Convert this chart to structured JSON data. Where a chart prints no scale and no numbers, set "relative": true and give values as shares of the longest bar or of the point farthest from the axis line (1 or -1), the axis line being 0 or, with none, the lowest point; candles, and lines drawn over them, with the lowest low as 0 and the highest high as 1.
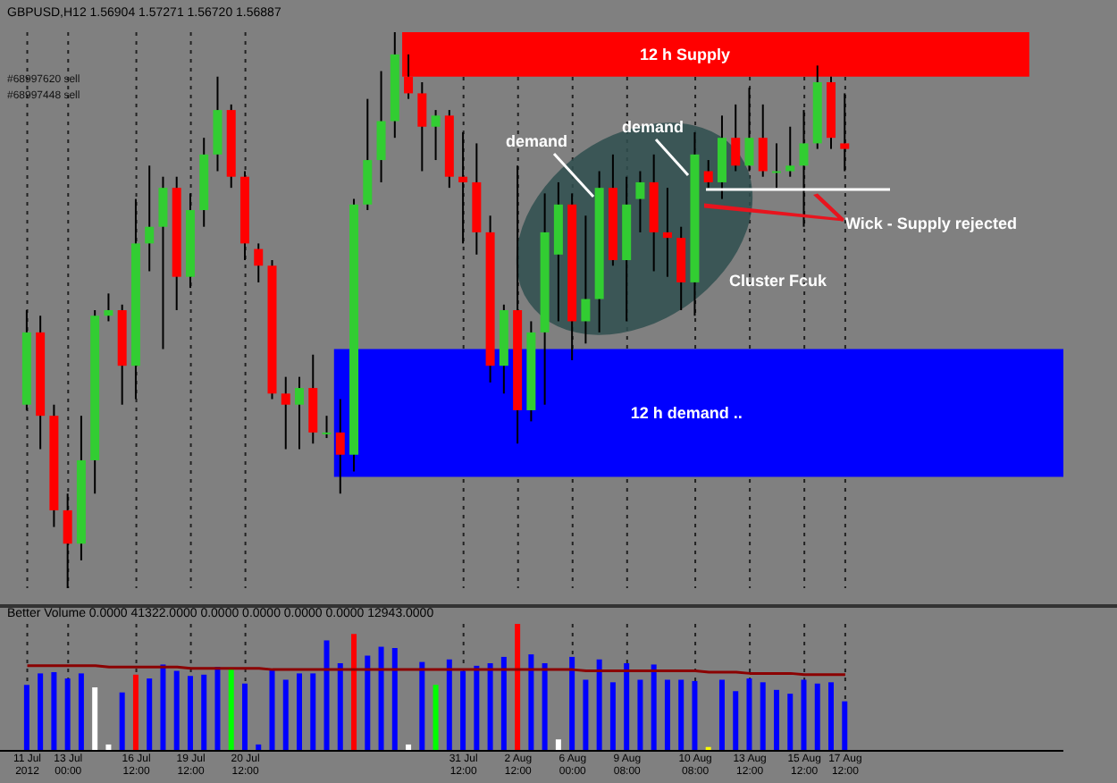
{
  "chart_data": [
    {
      "type": "candlestick",
      "title": "GBPUSD,H12 1.56904 1.57271 1.56720 1.56887",
      "relative": true,
      "grid": "x",
      "categories": [
        null,
        null,
        null,
        null,
        null,
        null,
        null,
        null,
        null,
        null,
        null,
        null,
        null,
        null,
        null,
        null,
        null,
        null,
        null,
        null,
        null,
        null,
        null,
        null,
        null,
        null,
        null,
        null,
        null,
        null,
        null,
        null,
        null,
        null,
        null,
        null,
        null,
        null,
        null,
        null,
        null,
        null,
        null,
        null,
        null,
        null,
        null,
        null,
        null,
        null,
        null,
        null,
        null,
        null,
        null,
        null,
        null,
        null,
        null,
        null,
        null
      ],
      "ohlc": [
        [
          0.33,
          0.5,
          0.32,
          0.46
        ],
        [
          0.46,
          0.49,
          0.25,
          0.31
        ],
        [
          0.31,
          0.33,
          0.11,
          0.14
        ],
        [
          0.14,
          0.17,
          0,
          0.08
        ],
        [
          0.08,
          0.31,
          0.05,
          0.23
        ],
        [
          0.23,
          0.5,
          0.17,
          0.49
        ],
        [
          0.49,
          0.53,
          0.48,
          0.5
        ],
        [
          0.5,
          0.51,
          0.33,
          0.4
        ],
        [
          0.4,
          0.7,
          0.34,
          0.62
        ],
        [
          0.62,
          0.76,
          0.57,
          0.65
        ],
        [
          0.65,
          0.74,
          0.43,
          0.72
        ],
        [
          0.72,
          0.74,
          0.5,
          0.56
        ],
        [
          0.56,
          0.71,
          0.54,
          0.68
        ],
        [
          0.68,
          0.81,
          0.65,
          0.78
        ],
        [
          0.78,
          0.92,
          0.75,
          0.86
        ],
        [
          0.86,
          0.87,
          0.72,
          0.74
        ],
        [
          0.74,
          0.75,
          0.59,
          0.62
        ],
        [
          0.61,
          0.62,
          0.55,
          0.58
        ],
        [
          0.58,
          0.59,
          0.34,
          0.35
        ],
        [
          0.35,
          0.38,
          0.25,
          0.33
        ],
        [
          0.33,
          0.38,
          0.25,
          0.36
        ],
        [
          0.36,
          0.42,
          0.26,
          0.28
        ],
        [
          0.28,
          0.31,
          0.27,
          0.28
        ],
        [
          0.28,
          0.34,
          0.17,
          0.24
        ],
        [
          0.24,
          0.7,
          0.21,
          0.69
        ],
        [
          0.69,
          0.88,
          0.68,
          0.77
        ],
        [
          0.77,
          0.93,
          0.73,
          0.84
        ],
        [
          0.84,
          1.0,
          0.81,
          0.96
        ],
        [
          0.92,
          0.96,
          0.88,
          0.89
        ],
        [
          0.89,
          0.91,
          0.75,
          0.83
        ],
        [
          0.83,
          0.86,
          0.77,
          0.85
        ],
        [
          0.85,
          0.86,
          0.72,
          0.74
        ],
        [
          0.74,
          0.82,
          0.62,
          0.73
        ],
        [
          0.73,
          0.8,
          0.6,
          0.64
        ],
        [
          0.64,
          0.67,
          0.37,
          0.4
        ],
        [
          0.4,
          0.51,
          0.35,
          0.5
        ],
        [
          0.5,
          0.76,
          0.26,
          0.32
        ],
        [
          0.32,
          0.48,
          0.3,
          0.46
        ],
        [
          0.46,
          0.71,
          0.33,
          0.64
        ],
        [
          0.6,
          0.73,
          0.48,
          0.69
        ],
        [
          0.69,
          0.71,
          0.41,
          0.48
        ],
        [
          0.48,
          0.67,
          0.44,
          0.52
        ],
        [
          0.52,
          0.75,
          0.46,
          0.72
        ],
        [
          0.72,
          0.78,
          0.58,
          0.59
        ],
        [
          0.59,
          0.74,
          0.48,
          0.69
        ],
        [
          0.7,
          0.75,
          0.64,
          0.73
        ],
        [
          0.73,
          0.78,
          0.57,
          0.64
        ],
        [
          0.64,
          0.72,
          0.56,
          0.63
        ],
        [
          0.63,
          0.65,
          0.5,
          0.55
        ],
        [
          0.55,
          0.82,
          0.49,
          0.78
        ],
        [
          0.75,
          0.77,
          0.72,
          0.73
        ],
        [
          0.73,
          0.85,
          0.7,
          0.81
        ],
        [
          0.81,
          0.87,
          0.75,
          0.76
        ],
        [
          0.76,
          0.9,
          0.75,
          0.81
        ],
        [
          0.81,
          0.87,
          0.74,
          0.75
        ],
        [
          0.75,
          0.8,
          0.72,
          0.75
        ],
        [
          0.75,
          0.83,
          0.74,
          0.76
        ],
        [
          0.76,
          0.86,
          0.65,
          0.8
        ],
        [
          0.8,
          0.94,
          0.79,
          0.91
        ],
        [
          0.91,
          0.92,
          0.79,
          0.81
        ],
        [
          0.8,
          0.89,
          0.75,
          0.79
        ]
      ],
      "colors": [
        "#32cd32",
        "#ff0000",
        "#ff0000",
        "#ff0000",
        "#32cd32",
        "#32cd32",
        "#32cd32",
        "#ff0000",
        "#32cd32",
        "#32cd32",
        "#32cd32",
        "#ff0000",
        "#32cd32",
        "#32cd32",
        "#32cd32",
        "#ff0000",
        "#ff0000",
        "#ff0000",
        "#ff0000",
        "#ff0000",
        "#32cd32",
        "#ff0000",
        "#32cd32",
        "#ff0000",
        "#32cd32",
        "#32cd32",
        "#32cd32",
        "#32cd32",
        "#ff0000",
        "#ff0000",
        "#32cd32",
        "#ff0000",
        "#ff0000",
        "#ff0000",
        "#ff0000",
        "#32cd32",
        "#ff0000",
        "#32cd32",
        "#32cd32",
        "#32cd32",
        "#ff0000",
        "#32cd32",
        "#32cd32",
        "#ff0000",
        "#32cd32",
        "#32cd32",
        "#ff0000",
        "#ff0000",
        "#ff0000",
        "#32cd32",
        "#ff0000",
        "#32cd32",
        "#ff0000",
        "#32cd32",
        "#ff0000",
        "#32cd32",
        "#32cd32",
        "#32cd32",
        "#32cd32",
        "#ff0000",
        "#ff0000"
      ],
      "bands": [
        {
          "axis": "y",
          "from": 0.92,
          "to": 1.0,
          "label": "12 h Supply",
          "color": "#ff0000"
        },
        {
          "axis": "y",
          "from": 0.2,
          "to": 0.43,
          "label": "12 h demand ..",
          "color": "#0000ff"
        }
      ],
      "annotations": [
        "demand",
        "demand",
        "Wick - Supply rejected",
        "Cluster Fcuk",
        "#68997620 sell",
        "#68997448 sell"
      ]
    },
    {
      "type": "bar",
      "title": "Better Volume 0.0000 41322.0000 0.0000 0.0000 0.0000 0.0000 12943.0000",
      "relative": true,
      "grid": "x",
      "categories": [
        "11 Jul 2012",
        null,
        null,
        "13 Jul 00:00",
        null,
        null,
        null,
        null,
        "16 Jul 12:00",
        null,
        null,
        null,
        "19 Jul 12:00",
        null,
        null,
        null,
        "20 Jul 12:00",
        null,
        null,
        null,
        null,
        null,
        null,
        null,
        null,
        null,
        null,
        null,
        null,
        null,
        null,
        null,
        "31 Jul 12:00",
        null,
        null,
        null,
        "2 Aug 12:00",
        null,
        null,
        null,
        "6 Aug 00:00",
        null,
        null,
        null,
        "9 Aug 08:00",
        null,
        null,
        null,
        null,
        "10 Aug 08:00",
        null,
        null,
        null,
        "13 Aug 12:00",
        null,
        null,
        null,
        "15 Aug 12:00",
        null,
        null,
        "17 Aug 12:00"
      ],
      "series": [
        {
          "type": "bar",
          "values": [
            0.52,
            0.61,
            0.62,
            0.57,
            0.61,
            0.5,
            0.05,
            0.46,
            0.6,
            0.57,
            0.68,
            0.63,
            0.59,
            0.6,
            0.66,
            0.64,
            0.53,
            0.05,
            0.64,
            0.56,
            0.61,
            0.61,
            0.87,
            0.69,
            0.92,
            0.75,
            0.82,
            0.81,
            0.05,
            0.7,
            0.52,
            0.72,
            0.63,
            0.67,
            0.69,
            0.74,
            1,
            0.76,
            0.69,
            0.09,
            0.74,
            0.56,
            0.72,
            0.54,
            0.69,
            0.56,
            0.68,
            0.56,
            0.56,
            0.55,
            0.03,
            0.56,
            0.47,
            0.57,
            0.54,
            0.48,
            0.45,
            0.56,
            0.53,
            0.54,
            0.39
          ],
          "colors": [
            "#0000ff",
            "#0000ff",
            "#0000ff",
            "#0000ff",
            "#0000ff",
            "#ffffff",
            "#ffffff",
            "#0000ff",
            "#ff0000",
            "#0000ff",
            "#0000ff",
            "#0000ff",
            "#0000ff",
            "#0000ff",
            "#0000ff",
            "#00ff00",
            "#0000ff",
            "#0000ff",
            "#0000ff",
            "#0000ff",
            "#0000ff",
            "#0000ff",
            "#0000ff",
            "#0000ff",
            "#ff0000",
            "#0000ff",
            "#0000ff",
            "#0000ff",
            "#ffffff",
            "#0000ff",
            "#00ff00",
            "#0000ff",
            "#0000ff",
            "#0000ff",
            "#0000ff",
            "#0000ff",
            "#ff0000",
            "#0000ff",
            "#0000ff",
            "#ffffff",
            "#0000ff",
            "#0000ff",
            "#0000ff",
            "#0000ff",
            "#0000ff",
            "#0000ff",
            "#0000ff",
            "#0000ff",
            "#0000ff",
            "#0000ff",
            "#ffff00",
            "#0000ff",
            "#0000ff",
            "#0000ff",
            "#0000ff",
            "#0000ff",
            "#0000ff",
            "#0000ff",
            "#0000ff",
            "#0000ff",
            "#0000ff"
          ]
        },
        {
          "type": "line",
          "color": "#8b0000",
          "values": [
            0.67,
            0.67,
            0.67,
            0.67,
            0.67,
            0.67,
            0.66,
            0.66,
            0.66,
            0.66,
            0.66,
            0.66,
            0.65,
            0.65,
            0.65,
            0.65,
            0.65,
            0.65,
            0.64,
            0.64,
            0.64,
            0.64,
            0.64,
            0.64,
            0.64,
            0.64,
            0.64,
            0.64,
            0.64,
            0.64,
            0.64,
            0.64,
            0.64,
            0.64,
            0.64,
            0.64,
            0.64,
            0.64,
            0.64,
            0.64,
            0.64,
            0.63,
            0.63,
            0.63,
            0.63,
            0.63,
            0.63,
            0.63,
            0.63,
            0.63,
            0.62,
            0.62,
            0.62,
            0.61,
            0.61,
            0.61,
            0.61,
            0.6,
            0.6,
            0.6,
            0.6
          ]
        }
      ]
    }
  ]
}
